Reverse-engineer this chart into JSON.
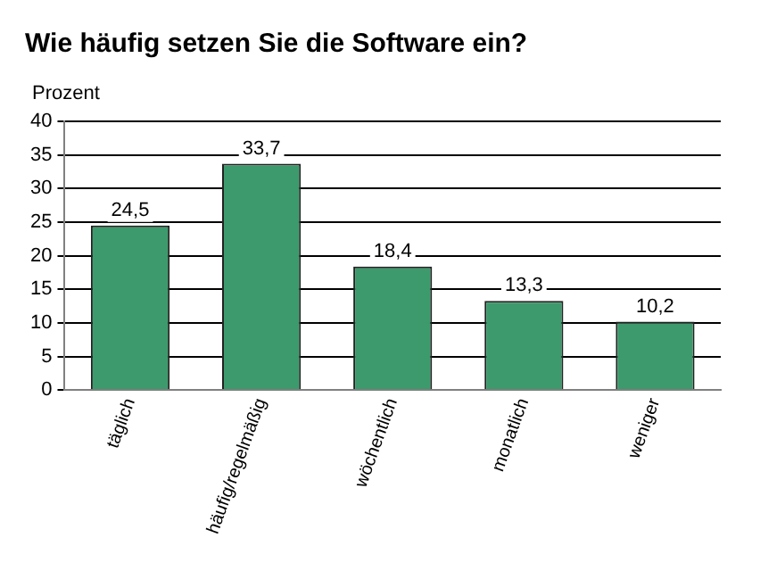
{
  "chart_data": {
    "type": "bar",
    "title": "Wie häufig setzen Sie die Software ein?",
    "ylabel": "Prozent",
    "categories": [
      "täglich",
      "häufig/regelmäßig",
      "wöchentlich",
      "monatlich",
      "weniger"
    ],
    "values": [
      24.5,
      33.7,
      18.4,
      13.3,
      10.2
    ],
    "value_labels": [
      "24,5",
      "33,7",
      "18,4",
      "13,3",
      "10,2"
    ],
    "color": "#3c9a6c",
    "ylim": [
      0,
      40
    ],
    "yticks": [
      0,
      5,
      10,
      15,
      20,
      25,
      30,
      35,
      40
    ],
    "grid": "y",
    "legend": false
  }
}
